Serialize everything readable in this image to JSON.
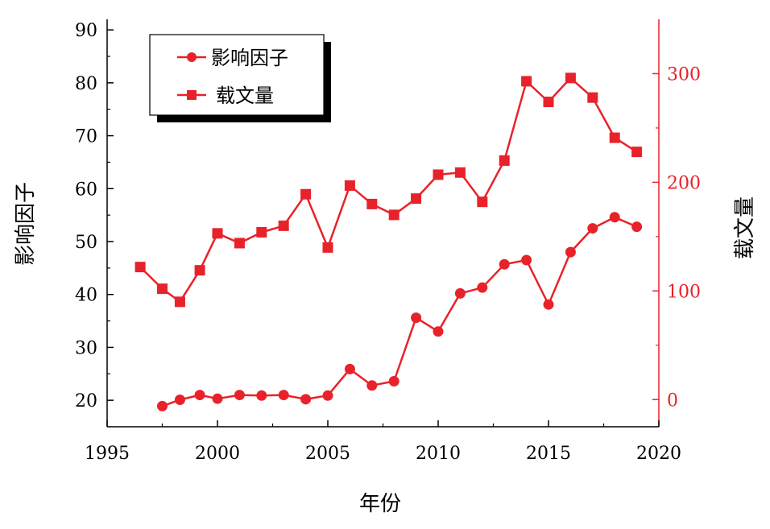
{
  "chart_data": {
    "type": "line",
    "xlabel": "年份",
    "x_ticks": [
      "1995",
      "2000",
      "2005",
      "2010",
      "2015",
      "2020"
    ],
    "xlim": [
      1995,
      2020
    ],
    "left_axis": {
      "label": "影响因子",
      "ylim": [
        15,
        92
      ],
      "ticks": [
        "20",
        "30",
        "40",
        "50",
        "60",
        "70",
        "80",
        "90"
      ]
    },
    "right_axis": {
      "label": "载文量",
      "ylim": [
        -25,
        350
      ],
      "ticks": [
        "0",
        "100",
        "200",
        "300"
      ],
      "color": "#e8222a"
    },
    "colors": {
      "series": "#e8222a",
      "axes": "#000000"
    },
    "legend_position": "top-left",
    "series": [
      {
        "name": "影响因子",
        "axis": "left",
        "marker": "circle",
        "x": [
          1997.5,
          1998.3,
          1999.2,
          2000.0,
          2001.0,
          2002.0,
          2003.0,
          2004.0,
          2005.0,
          2006.0,
          2007.0,
          2008.0,
          2009.0,
          2010.0,
          2011.0,
          2012.0,
          2013.0,
          2014.0,
          2015.0,
          2016.0,
          2017.0,
          2018.0,
          2019.0
        ],
        "values": [
          18.9,
          20.1,
          21.0,
          20.3,
          21.0,
          20.9,
          21.0,
          20.2,
          20.9,
          25.9,
          22.8,
          23.6,
          35.6,
          33.0,
          40.2,
          41.3,
          45.7,
          46.5,
          38.1,
          48.0,
          52.5,
          54.6,
          52.8
        ]
      },
      {
        "name": "载文量",
        "axis": "right",
        "marker": "square",
        "x": [
          1996.5,
          1997.5,
          1998.3,
          1999.2,
          2000.0,
          2001.0,
          2002.0,
          2003.0,
          2004.0,
          2005.0,
          2006.0,
          2007.0,
          2008.0,
          2009.0,
          2010.0,
          2011.0,
          2012.0,
          2013.0,
          2014.0,
          2015.0,
          2016.0,
          2017.0,
          2018.0,
          2019.0
        ],
        "values": [
          122,
          102,
          90,
          119,
          153,
          144,
          154,
          160,
          189,
          140,
          197,
          180,
          170,
          185,
          207,
          209,
          182,
          220,
          293,
          274,
          296,
          278,
          241,
          228
        ]
      }
    ]
  }
}
